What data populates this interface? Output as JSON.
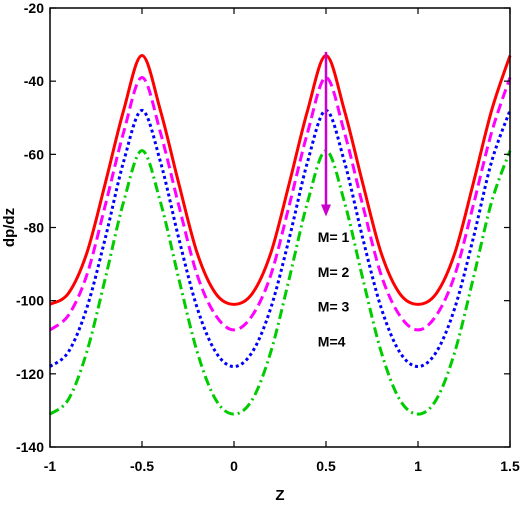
{
  "chart_data": {
    "type": "line",
    "title": "",
    "xlabel": "Z",
    "ylabel": "dp/dz",
    "xlim": [
      -1,
      1.5
    ],
    "ylim": [
      -140,
      -20
    ],
    "xticks": [
      -1,
      -0.5,
      0,
      0.5,
      1,
      1.5
    ],
    "xtick_labels": [
      "-1",
      "-0.5",
      "0",
      "0.5",
      "1",
      "1.5"
    ],
    "yticks": [
      -140,
      -120,
      -100,
      -80,
      -60,
      -40,
      -20
    ],
    "ytick_labels": [
      "-140",
      "-120",
      "-100",
      "-80",
      "-60",
      "-40",
      "-20"
    ],
    "grid": false,
    "x": [
      -1.0,
      -0.9,
      -0.8,
      -0.7,
      -0.6,
      -0.5,
      -0.4,
      -0.3,
      -0.2,
      -0.1,
      0.0,
      0.1,
      0.2,
      0.3,
      0.4,
      0.5,
      0.6,
      0.7,
      0.8,
      0.9,
      1.0,
      1.1,
      1.2,
      1.3,
      1.4,
      1.5
    ],
    "series": [
      {
        "color": "#ff0000",
        "dash": "solid",
        "values": [
          -101,
          -98,
          -87,
          -68,
          -48,
          -33,
          -48,
          -68,
          -87,
          -98,
          -101,
          -98,
          -87,
          -68,
          -48,
          -33,
          -48,
          -68,
          -87,
          -98,
          -101,
          -98,
          -87,
          -68,
          -48,
          -33
        ]
      },
      {
        "color": "#ff00ff",
        "dash": "dashed",
        "values": [
          -108,
          -104,
          -93,
          -74,
          -54,
          -39,
          -54,
          -74,
          -93,
          -104,
          -108,
          -104,
          -93,
          -74,
          -54,
          -39,
          -54,
          -74,
          -93,
          -104,
          -108,
          -104,
          -93,
          -74,
          -54,
          -39
        ]
      },
      {
        "color": "#0000ff",
        "dash": "dotted",
        "values": [
          -118,
          -114,
          -102,
          -83,
          -62,
          -48,
          -62,
          -83,
          -102,
          -114,
          -118,
          -114,
          -102,
          -83,
          -62,
          -48,
          -62,
          -83,
          -102,
          -114,
          -118,
          -114,
          -102,
          -83,
          -62,
          -48
        ]
      },
      {
        "color": "#00cc00",
        "dash": "dashdot",
        "values": [
          -131,
          -127,
          -114,
          -94,
          -73,
          -59,
          -73,
          -94,
          -114,
          -127,
          -131,
          -127,
          -114,
          -94,
          -73,
          -59,
          -73,
          -94,
          -114,
          -127,
          -131,
          -127,
          -114,
          -94,
          -73,
          -59
        ]
      }
    ],
    "annotations": {
      "arrow": {
        "x": 0.5,
        "y_from": -32,
        "y_to": -77,
        "color": "#cc00cc"
      },
      "labels": [
        "M= 1",
        "M= 2",
        "M= 3",
        "M=4"
      ],
      "label_anchor": {
        "x": 0.45,
        "y": -84,
        "step": -9.5
      }
    }
  }
}
